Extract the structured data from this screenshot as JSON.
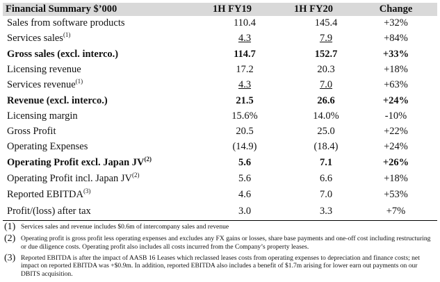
{
  "table": {
    "headers": {
      "label": "Financial Summary $’000",
      "fy19": "1H FY19",
      "fy20": "1H FY20",
      "change": "Change"
    },
    "rows": [
      {
        "label": "Sales from software products",
        "sup": "",
        "fy19": "110.4",
        "fy20": "145.4",
        "change": "+32%"
      },
      {
        "label": "Services sales",
        "sup": "(1)",
        "fy19": "4.3",
        "fy20": "7.9",
        "change": "+84%"
      },
      {
        "label": "Gross sales (excl. interco.)",
        "sup": "",
        "fy19": "114.7",
        "fy20": "152.7",
        "change": "+33%"
      },
      {
        "label": "Licensing revenue",
        "sup": "",
        "fy19": "17.2",
        "fy20": "20.3",
        "change": "+18%"
      },
      {
        "label": "Services revenue",
        "sup": "(1)",
        "fy19": "4.3",
        "fy20": "7.0",
        "change": "+63%"
      },
      {
        "label": "Revenue (excl. interco.)",
        "sup": "",
        "fy19": "21.5",
        "fy20": "26.6",
        "change": "+24%"
      },
      {
        "label": "Licensing margin",
        "sup": "",
        "fy19": "15.6%",
        "fy20": "14.0%",
        "change": "-10%"
      },
      {
        "label": "Gross Profit",
        "sup": "",
        "fy19": "20.5",
        "fy20": "25.0",
        "change": "+22%"
      },
      {
        "label": "Operating Expenses",
        "sup": "",
        "fy19": "(14.9)",
        "fy20": "(18.4)",
        "change": "+24%"
      },
      {
        "label": "Operating Profit excl. Japan JV",
        "sup": "(2)",
        "fy19": "5.6",
        "fy20": "7.1",
        "change": "+26%"
      },
      {
        "label": "Operating Profit incl. Japan JV",
        "sup": "(2)",
        "fy19": "5.6",
        "fy20": "6.6",
        "change": "+18%"
      },
      {
        "label": "Reported EBITDA",
        "sup": "(3)",
        "fy19": "4.6",
        "fy20": "7.0",
        "change": "+53%"
      },
      {
        "label": "Profit/(loss) after tax",
        "sup": "",
        "fy19": "3.0",
        "fy20": "3.3",
        "change": "+7%"
      }
    ]
  },
  "notes": [
    {
      "num": "(1)",
      "text": "Services sales and revenue includes $0.6m of intercompany sales and revenue"
    },
    {
      "num": "(2)",
      "text": "Operating profit is gross profit less operating expenses and excludes any FX gains or losses, share base payments and one-off cost including restructuring or due diligence costs. Operating profit also includes all costs incurred from the Company’s property leases."
    },
    {
      "num": "(3)",
      "text": "Reported EBITDA is after the impact of AASB 16 Leases which reclassed leases costs from operating expenses to depreciation and finance costs; net impact on reported EBITDA was +$0.9m. In addition, reported EBITDA also includes a benefit of $1.7m arising for lower earn out payments on our DBITS acquisition."
    }
  ]
}
